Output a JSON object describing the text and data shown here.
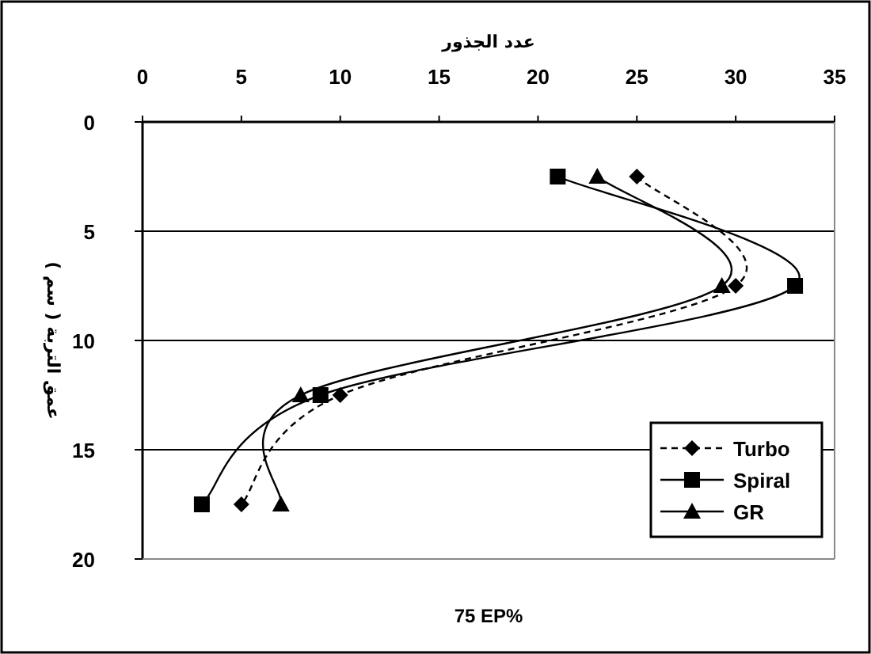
{
  "chart_data": {
    "type": "line",
    "xlabel": "عدد الجذور",
    "ylabel": "عمق التربة ( سم )",
    "annotations": [
      "75 EP%"
    ],
    "xlim": [
      0,
      35
    ],
    "xticks": [
      0,
      5,
      10,
      15,
      20,
      25,
      30,
      35
    ],
    "ylim": [
      20,
      0
    ],
    "yticks": [
      0,
      5,
      10,
      15,
      20
    ],
    "grid": "y",
    "legend": "bottom right",
    "series": [
      {
        "name": "Turbo",
        "color": "#000000",
        "marker": "diamond",
        "line_style": "dashed",
        "x": [
          25,
          30,
          10,
          5
        ],
        "values": [
          2.5,
          7.5,
          12.5,
          17.5
        ]
      },
      {
        "name": "Spiral",
        "color": "#000000",
        "marker": "square",
        "line_style": "solid",
        "x": [
          21,
          33,
          9,
          3
        ],
        "values": [
          2.5,
          7.5,
          12.5,
          17.5
        ]
      },
      {
        "name": "GR",
        "color": "#000000",
        "marker": "triangle",
        "line_style": "solid",
        "x": [
          23,
          29.3,
          8,
          7
        ],
        "values": [
          2.5,
          7.5,
          12.5,
          17.5
        ]
      }
    ]
  }
}
